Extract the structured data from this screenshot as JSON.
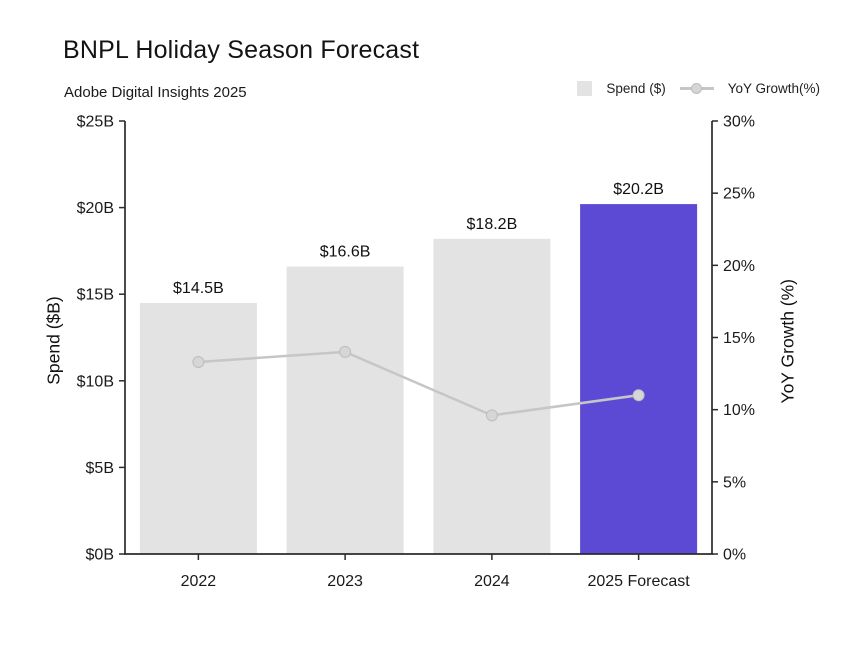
{
  "header": {
    "title": "BNPL Holiday Season Forecast",
    "subtitle": "Adobe Digital Insights 2025"
  },
  "legend": {
    "spend_label": "Spend ($)",
    "yoy_label": "YoY Growth(%)"
  },
  "colors": {
    "bar_default": "#e3e3e3",
    "bar_highlight": "#5c4ad4",
    "line": "#c6c6c6",
    "marker_fill": "#d6d6d6",
    "marker_stroke": "#bdbdbd",
    "axis": "#2b2b2b",
    "text": "#1a1a1a"
  },
  "chart_data": {
    "type": "combo",
    "categories": [
      "2022",
      "2023",
      "2024",
      "2025 Forecast"
    ],
    "series": [
      {
        "name": "Spend ($)",
        "type": "bar",
        "axis": "left",
        "values": [
          14.5,
          16.6,
          18.2,
          20.2
        ],
        "labels": [
          "$14.5B",
          "$16.6B",
          "$18.2B",
          "$20.2B"
        ],
        "highlight_index": 3
      },
      {
        "name": "YoY Growth(%)",
        "type": "line",
        "axis": "right",
        "values": [
          13.3,
          14.0,
          9.6,
          11.0
        ]
      }
    ],
    "y_left": {
      "label": "Spend ($B)",
      "range": [
        0,
        25
      ],
      "ticks": [
        "$0B",
        "$5B",
        "$10B",
        "$15B",
        "$20B",
        "$25B"
      ]
    },
    "y_right": {
      "label": "YoY Growth (%)",
      "range": [
        0,
        30
      ],
      "ticks": [
        "0%",
        "5%",
        "10%",
        "15%",
        "20%",
        "25%",
        "30%"
      ]
    },
    "title": "BNPL Holiday Season Forecast",
    "subtitle": "Adobe Digital Insights 2025",
    "grid": false,
    "legend_position": "top-right"
  }
}
